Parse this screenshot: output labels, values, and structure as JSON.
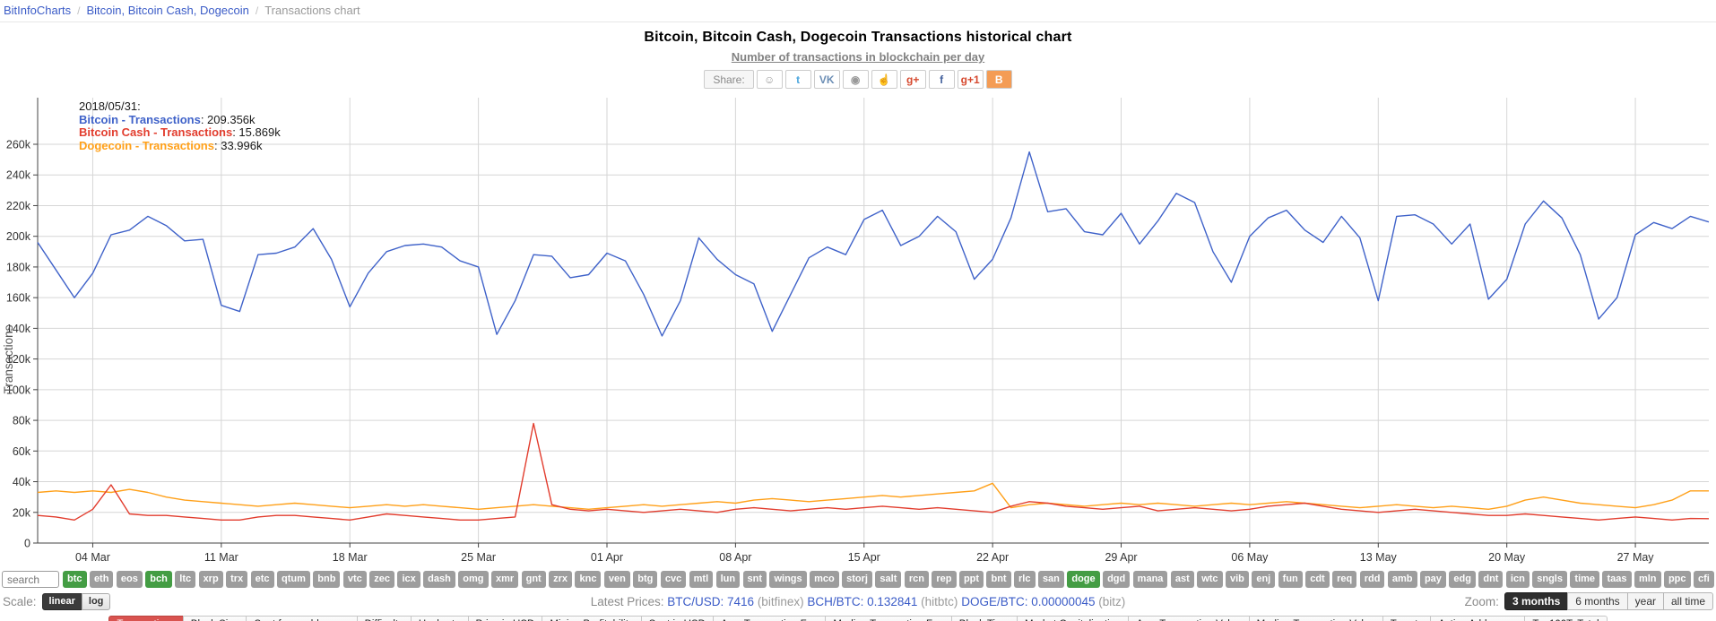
{
  "breadcrumb": {
    "home": "BitInfoCharts",
    "sep": "/",
    "page": "Bitcoin, Bitcoin Cash, Dogecoin",
    "current": "Transactions chart"
  },
  "header": {
    "title": "Bitcoin, Bitcoin Cash, Dogecoin Transactions historical chart",
    "subtitle": "Number of transactions in blockchain per day"
  },
  "share": {
    "label": "Share:",
    "buttons": [
      {
        "name": "reddit",
        "glyph": "☺",
        "color": "#9a9a9a",
        "bg": "#ffffff"
      },
      {
        "name": "twitter",
        "glyph": "t",
        "color": "#4da7de",
        "bg": "#ffffff"
      },
      {
        "name": "vk",
        "glyph": "VK",
        "color": "#6c8eb5",
        "bg": "#ffffff"
      },
      {
        "name": "weibo",
        "glyph": "◉",
        "color": "#9a9a9a",
        "bg": "#ffffff"
      },
      {
        "name": "like",
        "glyph": "☝",
        "color": "#7e9cc0",
        "bg": "#ffffff"
      },
      {
        "name": "google-plus",
        "glyph": "g+",
        "color": "#d6492f",
        "bg": "#ffffff"
      },
      {
        "name": "facebook",
        "glyph": "f",
        "color": "#43609c",
        "bg": "#ffffff"
      },
      {
        "name": "google-plus-one",
        "glyph": "g+1",
        "color": "#d6492f",
        "bg": "#ffffff"
      },
      {
        "name": "blogger",
        "glyph": "B",
        "color": "#ffffff",
        "bg": "#f49c55"
      }
    ]
  },
  "legend": {
    "date": "2018/05/31:",
    "items": [
      {
        "label": "Bitcoin - Transactions",
        "value": "209.356k",
        "color": "#3f62c9"
      },
      {
        "label": "Bitcoin Cash - Transactions",
        "value": "15.869k",
        "color": "#e23d2e"
      },
      {
        "label": "Dogecoin - Transactions",
        "value": "33.996k",
        "color": "#ffa019"
      }
    ]
  },
  "chart_data": {
    "type": "line",
    "title": "Bitcoin, Bitcoin Cash, Dogecoin Transactions historical chart",
    "subtitle": "Number of transactions in blockchain per day",
    "ylabel": "Transactions",
    "unit": "thousands of transactions per day",
    "x_start": "2018-03-01",
    "x_end": "2018-05-31",
    "x_tick_labels": [
      "04 Mar",
      "11 Mar",
      "18 Mar",
      "25 Mar",
      "01 Apr",
      "08 Apr",
      "15 Apr",
      "22 Apr",
      "29 Apr",
      "06 May",
      "13 May",
      "20 May",
      "27 May"
    ],
    "x_tick_day_index": [
      3,
      10,
      17,
      24,
      31,
      38,
      45,
      52,
      59,
      66,
      73,
      80,
      87
    ],
    "y_tick_labels": [
      "0",
      "20k",
      "40k",
      "60k",
      "80k",
      "100k",
      "120k",
      "140k",
      "160k",
      "180k",
      "200k",
      "220k",
      "240k",
      "260k"
    ],
    "ylim": [
      0,
      290
    ],
    "grid": true,
    "legend_position": "top-left",
    "series": [
      {
        "name": "Bitcoin - Transactions",
        "color": "#3f62c9",
        "values": [
          196,
          178,
          160,
          176,
          201,
          204,
          213,
          207,
          197,
          198,
          155,
          151,
          188,
          189,
          193,
          205,
          185,
          154,
          176,
          190,
          194,
          195,
          193,
          184,
          180,
          136,
          158,
          188,
          187,
          173,
          175,
          189,
          184,
          162,
          135,
          158,
          199,
          185,
          175,
          169,
          138,
          162,
          186,
          193,
          188,
          211,
          217,
          194,
          200,
          213,
          203,
          172,
          185,
          212,
          255,
          216,
          218,
          203,
          201,
          215,
          195,
          210,
          228,
          222,
          190,
          170,
          200,
          212,
          217,
          204,
          196,
          213,
          199,
          158,
          213,
          214,
          208,
          195,
          208,
          159,
          172,
          208,
          223,
          212,
          188,
          146,
          160,
          201,
          209,
          205,
          213,
          209.356
        ]
      },
      {
        "name": "Bitcoin Cash - Transactions",
        "color": "#e23d2e",
        "values": [
          18,
          17,
          15,
          22,
          38,
          19,
          18,
          18,
          17,
          16,
          15,
          15,
          17,
          18,
          18,
          17,
          16,
          15,
          17,
          19,
          18,
          17,
          16,
          15,
          15,
          16,
          17,
          78,
          25,
          22,
          21,
          22,
          21,
          20,
          21,
          22,
          21,
          20,
          22,
          23,
          22,
          21,
          22,
          23,
          22,
          23,
          24,
          23,
          22,
          23,
          22,
          21,
          20,
          24,
          27,
          26,
          24,
          23,
          22,
          23,
          24,
          21,
          22,
          23,
          22,
          21,
          22,
          24,
          25,
          26,
          24,
          22,
          21,
          20,
          21,
          22,
          21,
          20,
          19,
          18,
          18,
          19,
          18,
          17,
          16,
          15,
          16,
          17,
          16,
          15,
          16,
          15.869
        ]
      },
      {
        "name": "Dogecoin - Transactions",
        "color": "#ffa019",
        "values": [
          33,
          34,
          33,
          34,
          33,
          35,
          33,
          30,
          28,
          27,
          26,
          25,
          24,
          25,
          26,
          25,
          24,
          23,
          24,
          25,
          24,
          25,
          24,
          23,
          22,
          23,
          24,
          25,
          24,
          23,
          22,
          23,
          24,
          25,
          24,
          25,
          26,
          27,
          26,
          28,
          29,
          28,
          27,
          28,
          29,
          30,
          31,
          30,
          31,
          32,
          33,
          34,
          39,
          23,
          25,
          26,
          25,
          24,
          25,
          26,
          25,
          26,
          25,
          24,
          25,
          26,
          25,
          26,
          27,
          26,
          25,
          24,
          23,
          24,
          25,
          24,
          23,
          24,
          23,
          22,
          24,
          28,
          30,
          28,
          26,
          25,
          24,
          23,
          25,
          28,
          34,
          33.996
        ]
      }
    ]
  },
  "controls": {
    "search_placeholder": "search",
    "selected_coins": [
      "btc",
      "bch",
      "doge"
    ],
    "coins": [
      "btc",
      "eth",
      "eos",
      "bch",
      "ltc",
      "xrp",
      "trx",
      "etc",
      "qtum",
      "bnb",
      "vtc",
      "zec",
      "icx",
      "dash",
      "omg",
      "xmr",
      "gnt",
      "zrx",
      "knc",
      "ven",
      "btg",
      "cvc",
      "mtl",
      "lun",
      "snt",
      "wings",
      "mco",
      "storj",
      "salt",
      "rcn",
      "rep",
      "ppt",
      "bnt",
      "rlc",
      "san",
      "doge",
      "dgd",
      "mana",
      "ast",
      "wtc",
      "vib",
      "enj",
      "fun",
      "cdt",
      "req",
      "rdd",
      "amb",
      "pay",
      "edg",
      "dnt",
      "icn",
      "sngls",
      "time",
      "taas",
      "mln",
      "ppc",
      "cfi"
    ],
    "scale_label": "Scale:",
    "scale_options": [
      {
        "label": "linear",
        "selected": true
      },
      {
        "label": "log",
        "selected": false
      }
    ],
    "prices": {
      "label": "Latest Prices:",
      "items": [
        {
          "pair": "BTC/USD:",
          "value": "7416",
          "exchange": "(bitfinex)"
        },
        {
          "pair": "BCH/BTC:",
          "value": "0.132841",
          "exchange": "(hitbtc)"
        },
        {
          "pair": "DOGE/BTC:",
          "value": "0.00000045",
          "exchange": "(bitz)"
        }
      ]
    },
    "zoom_label": "Zoom:",
    "zoom_options": [
      {
        "label": "3 months",
        "selected": true
      },
      {
        "label": "6 months",
        "selected": false
      },
      {
        "label": "year",
        "selected": false
      },
      {
        "label": "all time",
        "selected": false
      }
    ]
  },
  "metrics": [
    {
      "label": "Transactions",
      "selected": true
    },
    {
      "label": "Block Size",
      "selected": false
    },
    {
      "label": "Sent from addresses",
      "selected": false
    },
    {
      "label": "Difficulty",
      "selected": false
    },
    {
      "label": "Hashrate",
      "selected": false
    },
    {
      "label": "Price in USD",
      "selected": false
    },
    {
      "label": "Mining Profitability",
      "selected": false
    },
    {
      "label": "Sent in USD",
      "selected": false
    },
    {
      "label": "Avg. Transaction Fee",
      "selected": false
    },
    {
      "label": "Median Transaction Fee",
      "selected": false
    },
    {
      "label": "Block Time",
      "selected": false
    },
    {
      "label": "Market Capitalization",
      "selected": false
    },
    {
      "label": "Avg. Transaction Value",
      "selected": false
    },
    {
      "label": "Median Transaction Value",
      "selected": false
    },
    {
      "label": "Tweets",
      "selected": false
    },
    {
      "label": "Active Addresses",
      "selected": false
    },
    {
      "label": "Top100ToTotal",
      "selected": false
    }
  ]
}
